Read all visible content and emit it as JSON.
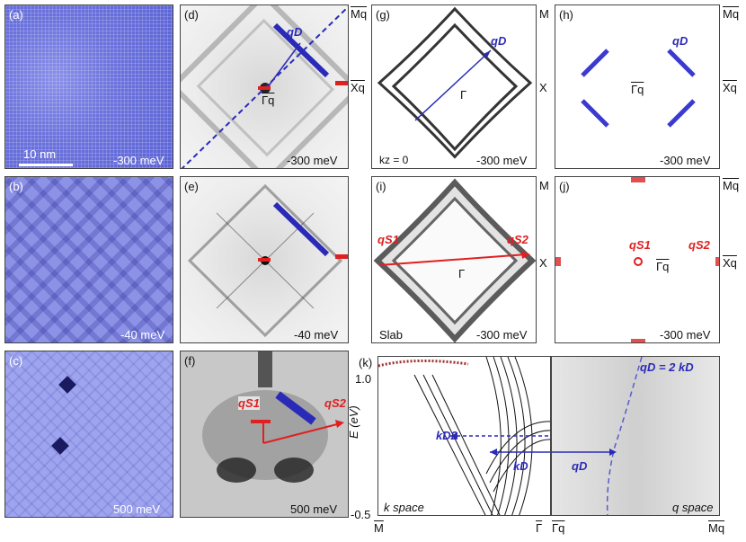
{
  "panels": {
    "a": {
      "tag": "(a)",
      "energy": "-300 meV",
      "scalebar": "10 nm"
    },
    "b": {
      "tag": "(b)",
      "energy": "-40 meV"
    },
    "c": {
      "tag": "(c)",
      "energy": "500 meV"
    },
    "d": {
      "tag": "(d)",
      "energy": "-300 meV",
      "qD": "qD",
      "gamma": "Γq"
    },
    "e": {
      "tag": "(e)",
      "energy": "-40 meV"
    },
    "f": {
      "tag": "(f)",
      "energy": "500 meV",
      "qS1": "qS1",
      "qS2": "qS2"
    },
    "g": {
      "tag": "(g)",
      "energy": "-300 meV",
      "kz": "kz = 0",
      "qD": "qD",
      "gamma": "Γ"
    },
    "h": {
      "tag": "(h)",
      "energy": "-300 meV",
      "qD": "qD",
      "gamma": "Γq"
    },
    "i": {
      "tag": "(i)",
      "energy": "-300 meV",
      "slab": "Slab",
      "qS1": "qS1",
      "qS2": "qS2",
      "gamma": "Γ"
    },
    "j": {
      "tag": "(j)",
      "energy": "-300 meV",
      "qS1": "qS1",
      "qS2": "qS2",
      "gamma": "Γq"
    },
    "k": {
      "tag": "(k)",
      "eq": "qD = 2 kD",
      "kD2": "kD2",
      "kD": "kD",
      "qD": "qD",
      "kspace": "k space",
      "qspace": "q space",
      "ylabel": "E (eV)",
      "y_top": "1.0",
      "y_bot": "-0.5",
      "x_ticks": [
        "M",
        "Γ",
        "Γq",
        "Mq"
      ]
    }
  },
  "side_labels": {
    "d_top": "Mq",
    "d_mid": "Xq",
    "g_top": "M",
    "g_mid": "X",
    "h_top": "Mq",
    "h_mid": "Xq",
    "i_top": "M",
    "i_mid": "X",
    "j_top": "Mq",
    "j_mid": "Xq"
  },
  "colors": {
    "blue": "#2a2ab8",
    "red": "#e02020",
    "stm": "#6b72dc"
  }
}
